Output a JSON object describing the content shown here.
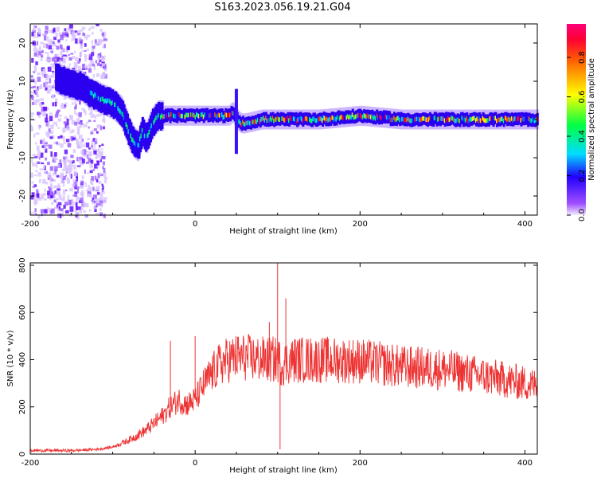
{
  "title": "S163.2023.056.19.21.G04",
  "chart_data": [
    {
      "type": "heatmap",
      "xlabel": "Height of straight line (km)",
      "ylabel": "Frequency (Hz)",
      "xlim": [
        -200,
        415
      ],
      "ylim": [
        -25,
        25
      ],
      "xticks": [
        "-200",
        "0",
        "200",
        "400"
      ],
      "xtick_values": [
        -200,
        0,
        200,
        400
      ],
      "yticks": [
        "-20",
        "-10",
        "0",
        "10",
        "20"
      ],
      "ytick_values": [
        -20,
        -10,
        0,
        10,
        20
      ],
      "colorbar": {
        "label": "Normalized spectral amplitude",
        "ticks": [
          "0.0",
          "0.2",
          "0.4",
          "0.6",
          "0.8"
        ],
        "tick_values": [
          0.0,
          0.2,
          0.4,
          0.6,
          0.8
        ],
        "range": [
          0,
          0.97
        ]
      },
      "trace": {
        "x": [
          -200,
          -180,
          -160,
          -150,
          -140,
          -130,
          -120,
          -110,
          -100,
          -90,
          -85,
          -80,
          -75,
          -70,
          -65,
          -60,
          -55,
          -50,
          -45,
          -40,
          -20,
          0,
          20,
          40,
          45,
          50,
          55,
          60,
          80,
          100,
          150,
          200,
          250,
          300,
          350,
          400,
          415
        ],
        "y": [
          14,
          12,
          10,
          9,
          9,
          7,
          6,
          5,
          4,
          2,
          -1,
          -4,
          -6,
          -7,
          -3,
          -5,
          -2,
          0,
          1,
          1,
          1,
          1,
          1,
          1,
          2,
          0,
          -1,
          -1,
          0,
          0,
          0,
          1,
          0,
          0,
          0,
          0,
          0
        ]
      },
      "spike": {
        "x": 50,
        "y_range": [
          -9,
          8
        ]
      }
    },
    {
      "type": "line",
      "xlabel": "Height of straight line (km)",
      "ylabel": "SNR (10 * v/v)",
      "xlim": [
        -200,
        415
      ],
      "ylim": [
        0,
        810
      ],
      "xticks": [
        "-200",
        "0",
        "200",
        "400"
      ],
      "xtick_values": [
        -200,
        0,
        200,
        400
      ],
      "yticks": [
        "0",
        "200",
        "400",
        "600",
        "800"
      ],
      "ytick_values": [
        0,
        200,
        400,
        600,
        800
      ],
      "color": "#ee3333",
      "envelope": {
        "x": [
          -200,
          -150,
          -120,
          -100,
          -80,
          -60,
          -40,
          -30,
          -20,
          -10,
          0,
          10,
          20,
          30,
          40,
          50,
          60,
          80,
          100,
          105,
          120,
          150,
          200,
          250,
          300,
          350,
          400,
          415
        ],
        "y": [
          15,
          15,
          20,
          30,
          60,
          100,
          160,
          200,
          230,
          210,
          230,
          290,
          340,
          380,
          400,
          410,
          410,
          400,
          400,
          380,
          400,
          400,
          395,
          370,
          360,
          330,
          300,
          290
        ]
      },
      "spikes": [
        {
          "x": -30,
          "y": 480
        },
        {
          "x": 0,
          "y": 500
        },
        {
          "x": 85,
          "y": 440
        },
        {
          "x": 90,
          "y": 560
        },
        {
          "x": 100,
          "y": 810
        },
        {
          "x": 103,
          "y": 20
        },
        {
          "x": 110,
          "y": 660
        }
      ]
    }
  ]
}
